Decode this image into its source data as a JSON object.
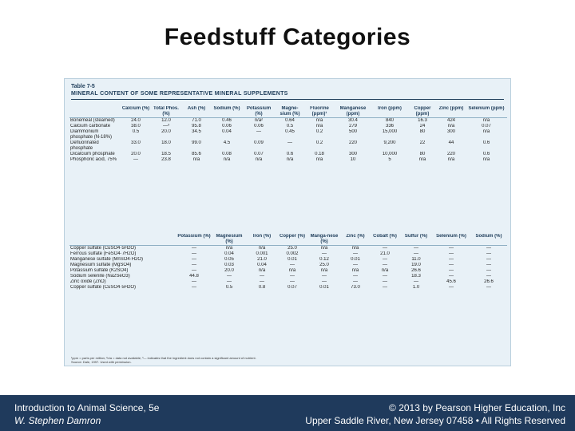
{
  "slide": {
    "title": "Feedstuff Categories"
  },
  "table": {
    "label": "Table 7-5",
    "caption": "MINERAL CONTENT OF SOME REPRESENTATIVE MINERAL SUPPLEMENTS",
    "part1": {
      "headers": [
        "",
        "Calcium (%)",
        "Total Phos. (%)",
        "Ash (%)",
        "Sodium (%)",
        "Potassium (%)",
        "Magne-sium (%)",
        "Fluorine (ppm)¹",
        "Manganese (ppm)",
        "Iron (ppm)",
        "Copper (ppm)",
        "Zinc (ppm)",
        "Selenium (ppm)"
      ],
      "rows": [
        [
          "Bonemeal (steamed)",
          "24.0",
          "12.0",
          "71.0",
          "0.46",
          "n/a²",
          "0.64",
          "n/a",
          "30.4",
          "840",
          "16.3",
          "424",
          "n/a"
        ],
        [
          "Calcium carbonate",
          "38.0",
          "—³",
          "95.8",
          "0.06",
          "0.06",
          "0.5",
          "n/a",
          "279",
          "336",
          "24",
          "n/a",
          "0.07"
        ],
        [
          "Diammonium phosphate (N-18%)",
          "0.5",
          "20.0",
          "34.5",
          "0.04",
          "—",
          "0.45",
          "0.2",
          "500",
          "15,000",
          "80",
          "300",
          "n/a"
        ],
        [
          "Defluorinated phosphate",
          "33.0",
          "18.0",
          "99.0",
          "4.5",
          "0.09",
          "—",
          "0.2",
          "220",
          "9,200",
          "22",
          "44",
          "0.6"
        ],
        [
          "Dicalcium phosphate",
          "20.0",
          "18.5",
          "85.6",
          "0.08",
          "0.07",
          "0.6",
          "0.18",
          "300",
          "10,000",
          "80",
          "220",
          "0.6"
        ],
        [
          "Phosphoric acid, 75%",
          "—",
          "23.8",
          "n/a",
          "n/a",
          "n/a",
          "n/a",
          "n/a",
          "10",
          "5",
          "n/a",
          "n/a",
          "n/a"
        ]
      ]
    },
    "part2": {
      "headers": [
        "",
        "Potassium (%)",
        "Magnesium (%)",
        "Iron (%)",
        "Copper (%)",
        "Manga-nese (%)",
        "Zinc (%)",
        "Cobalt (%)",
        "Sulfur (%)",
        "Selenium (%)",
        "Sodium (%)"
      ],
      "rows": [
        [
          "Copper sulfate (CuSO4·5H2O)",
          "—",
          "n/a",
          "n/a",
          "25.0",
          "n/a",
          "n/a",
          "—",
          "—",
          "—",
          "—"
        ],
        [
          "Ferrous sulfate (FeSO4·7H2O)",
          "—",
          "0.04",
          "0.001",
          "0.002",
          "—",
          "—",
          "21.0",
          "—",
          "—",
          "—"
        ],
        [
          "Manganese sulfate (MnSO4·H2O)",
          "—",
          "0.05",
          "21.0",
          "0.01",
          "0.12",
          "0.01",
          "—",
          "11.0",
          "—",
          "—"
        ],
        [
          "Magnesium sulfate (MgSO4)",
          "—",
          "0.03",
          "0.04",
          "—",
          "25.0",
          "—",
          "—",
          "19.0",
          "—",
          "—"
        ],
        [
          "Potassium sulfate (K2SO4)",
          "—",
          "20.0",
          "n/a",
          "n/a",
          "n/a",
          "n/a",
          "n/a",
          "26.6",
          "—",
          "—"
        ],
        [
          "Sodium selenite (Na2SeO3)",
          "44.8",
          "—",
          "—",
          "—",
          "—",
          "—",
          "—",
          "18.3",
          "—",
          "—"
        ],
        [
          "Zinc oxide (ZnO)",
          "—",
          "—",
          "—",
          "—",
          "—",
          "—",
          "—",
          "—",
          "45.6",
          "26.6"
        ],
        [
          "Copper sulfate (CuSO4·5H2O)",
          "—",
          "0.5",
          "0.8",
          "0.07",
          "0.01",
          "73.0",
          "—",
          "1.0",
          "—",
          "—"
        ]
      ]
    },
    "footnote": "¹ppm = parts per million; ²n/a = data not available; ³— indicates that the ingredient does not contain a significant amount of nutrient.",
    "source": "Source: Dale, 1997. Used with permission."
  },
  "footer": {
    "book": "Introduction to Animal Science, 5e",
    "author": "W. Stephen Damron",
    "copyright": "© 2013 by Pearson Higher Education, Inc",
    "publisher": "Upper Saddle River, New Jersey 07458 • All Rights Reserved"
  }
}
